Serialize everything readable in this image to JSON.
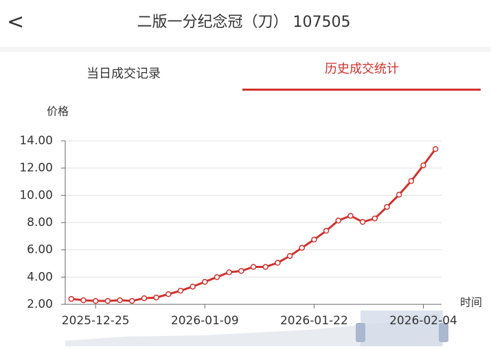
{
  "header": {
    "back": "<",
    "title": "二版一分纪念冠（刀） 107505"
  },
  "tabs": [
    "当日成交记录",
    "历史成交统计"
  ],
  "chart_data": {
    "type": "line",
    "y_label": "价格",
    "x_label": "时间",
    "color": "#d1302c",
    "grid": true,
    "categories": [
      null,
      null,
      "2025-12-25",
      null,
      null,
      null,
      null,
      null,
      null,
      null,
      null,
      "2026-01-09",
      null,
      null,
      null,
      null,
      null,
      null,
      null,
      null,
      "2026-01-22",
      null,
      null,
      null,
      null,
      null,
      null,
      null,
      null,
      "2026-02-04",
      null
    ],
    "values": [
      2.4,
      2.3,
      2.25,
      2.25,
      2.3,
      2.25,
      2.45,
      2.5,
      2.75,
      3.0,
      3.3,
      3.65,
      4.0,
      4.35,
      4.45,
      4.75,
      4.75,
      5.05,
      5.55,
      6.15,
      6.75,
      7.4,
      8.15,
      8.5,
      8.05,
      8.3,
      9.15,
      10.05,
      11.05,
      12.2,
      13.4
    ],
    "ylim": [
      2,
      14
    ],
    "yticks": [
      {
        "value": 2,
        "label": "2.00"
      },
      {
        "value": 4,
        "label": "4.00"
      },
      {
        "value": 6,
        "label": "6.00"
      },
      {
        "value": 8,
        "label": "8.00"
      },
      {
        "value": 10,
        "label": "10.00"
      },
      {
        "value": 12,
        "label": "12.00"
      },
      {
        "value": 14,
        "label": "14.00"
      }
    ]
  }
}
